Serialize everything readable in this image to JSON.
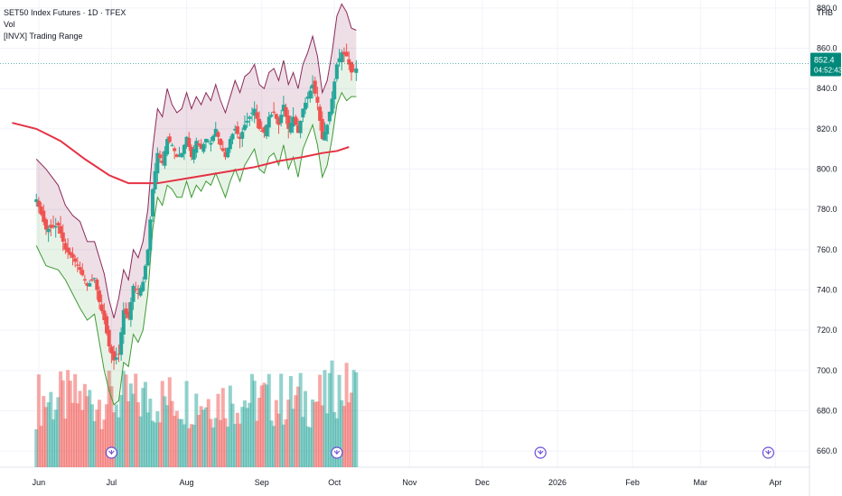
{
  "legend": {
    "symbol": "SET50 Index Futures · 1D · TFEX",
    "vol": "Vol",
    "indicator": "[INVX] Trading Range"
  },
  "currency": "THB",
  "colors": {
    "up": "#26a69a",
    "down": "#ef5350",
    "ma": "#e53244",
    "upper_band": "#8b2a5a",
    "lower_band": "#3f9a36",
    "price_line": "#00897b",
    "event_icon": "#6d4cd8"
  },
  "price_label": {
    "value": "852.4",
    "countdown": "04:52:43"
  },
  "event_icon": "event-arrow-icon",
  "chart_data": {
    "type": "candlestick",
    "ylim": [
      652,
      884
    ],
    "y_ticks": [
      880,
      860,
      840,
      820,
      800,
      780,
      760,
      740,
      720,
      700,
      680,
      660
    ],
    "y_tick_labels": [
      "880.0",
      "860.0",
      "840.0",
      "820.0",
      "800.0",
      "780.0",
      "760.0",
      "740.0",
      "720.0",
      "700.0",
      "680.0",
      "660.0"
    ],
    "x_tick_labels": [
      "Jun",
      "Jul",
      "Aug",
      "Sep",
      "Oct",
      "Nov",
      "Dec",
      "2026",
      "Feb",
      "Mar",
      "Apr"
    ],
    "x_tick_dates": [
      "2025-06-01",
      "2025-07-01",
      "2025-08-01",
      "2025-09-01",
      "2025-10-01",
      "2025-11-01",
      "2025-12-01",
      "2026-01-01",
      "2026-02-01",
      "2026-03-01",
      "2026-04-01"
    ],
    "x_start": "2025-05-16",
    "x_end": "2026-04-15",
    "last_price": 852.4,
    "close_path": [
      [
        0,
        785
      ],
      [
        4,
        770
      ],
      [
        9,
        772
      ],
      [
        12,
        760
      ],
      [
        15,
        756
      ],
      [
        18,
        750
      ],
      [
        21,
        742
      ],
      [
        24,
        746
      ],
      [
        26,
        734
      ],
      [
        28,
        725
      ],
      [
        30,
        712
      ],
      [
        32,
        705
      ],
      [
        34,
        708
      ],
      [
        36,
        730
      ],
      [
        38,
        726
      ],
      [
        40,
        742
      ],
      [
        42,
        738
      ],
      [
        44,
        744
      ],
      [
        46,
        760
      ],
      [
        48,
        790
      ],
      [
        50,
        808
      ],
      [
        52,
        803
      ],
      [
        54,
        815
      ],
      [
        56,
        812
      ],
      [
        58,
        806
      ],
      [
        60,
        808
      ],
      [
        62,
        816
      ],
      [
        64,
        806
      ],
      [
        66,
        814
      ],
      [
        68,
        810
      ],
      [
        70,
        815
      ],
      [
        72,
        813
      ],
      [
        74,
        820
      ],
      [
        76,
        812
      ],
      [
        78,
        806
      ],
      [
        80,
        815
      ],
      [
        82,
        820
      ],
      [
        84,
        815
      ],
      [
        86,
        822
      ],
      [
        88,
        826
      ],
      [
        90,
        830
      ],
      [
        92,
        820
      ],
      [
        94,
        818
      ],
      [
        96,
        826
      ],
      [
        98,
        828
      ],
      [
        100,
        822
      ],
      [
        102,
        832
      ],
      [
        104,
        820
      ],
      [
        106,
        826
      ],
      [
        108,
        818
      ],
      [
        110,
        830
      ],
      [
        112,
        836
      ],
      [
        114,
        842
      ],
      [
        116,
        833
      ],
      [
        118,
        815
      ],
      [
        120,
        822
      ],
      [
        122,
        835
      ],
      [
        124,
        852
      ],
      [
        126,
        858
      ],
      [
        128,
        856
      ],
      [
        130,
        848
      ],
      [
        132,
        850
      ]
    ],
    "ma_path": [
      [
        -10,
        823
      ],
      [
        0,
        820
      ],
      [
        10,
        814
      ],
      [
        20,
        805
      ],
      [
        30,
        797
      ],
      [
        38,
        793
      ],
      [
        50,
        793
      ],
      [
        60,
        795
      ],
      [
        70,
        797
      ],
      [
        80,
        799
      ],
      [
        90,
        801
      ],
      [
        100,
        804
      ],
      [
        110,
        806
      ],
      [
        118,
        808
      ],
      [
        124,
        809
      ],
      [
        129,
        811
      ]
    ],
    "upper_band_path": [
      [
        0,
        805
      ],
      [
        4,
        800
      ],
      [
        9,
        792
      ],
      [
        12,
        782
      ],
      [
        15,
        777
      ],
      [
        18,
        774
      ],
      [
        21,
        764
      ],
      [
        24,
        764
      ],
      [
        26,
        756
      ],
      [
        28,
        748
      ],
      [
        30,
        735
      ],
      [
        32,
        726
      ],
      [
        34,
        736
      ],
      [
        36,
        750
      ],
      [
        38,
        745
      ],
      [
        40,
        760
      ],
      [
        42,
        756
      ],
      [
        44,
        764
      ],
      [
        46,
        780
      ],
      [
        48,
        810
      ],
      [
        50,
        830
      ],
      [
        52,
        826
      ],
      [
        54,
        840
      ],
      [
        56,
        832
      ],
      [
        58,
        828
      ],
      [
        60,
        830
      ],
      [
        62,
        838
      ],
      [
        64,
        830
      ],
      [
        66,
        836
      ],
      [
        68,
        832
      ],
      [
        70,
        838
      ],
      [
        72,
        834
      ],
      [
        74,
        842
      ],
      [
        76,
        834
      ],
      [
        78,
        828
      ],
      [
        80,
        836
      ],
      [
        82,
        844
      ],
      [
        84,
        838
      ],
      [
        86,
        846
      ],
      [
        88,
        848
      ],
      [
        90,
        852
      ],
      [
        92,
        842
      ],
      [
        94,
        840
      ],
      [
        96,
        848
      ],
      [
        98,
        850
      ],
      [
        100,
        844
      ],
      [
        102,
        854
      ],
      [
        104,
        842
      ],
      [
        106,
        848
      ],
      [
        108,
        840
      ],
      [
        110,
        852
      ],
      [
        112,
        858
      ],
      [
        114,
        866
      ],
      [
        116,
        856
      ],
      [
        118,
        838
      ],
      [
        120,
        844
      ],
      [
        122,
        858
      ],
      [
        124,
        876
      ],
      [
        126,
        882
      ],
      [
        128,
        878
      ],
      [
        130,
        870
      ],
      [
        132,
        869
      ]
    ],
    "lower_band_path": [
      [
        0,
        762
      ],
      [
        4,
        752
      ],
      [
        9,
        750
      ],
      [
        12,
        745
      ],
      [
        15,
        738
      ],
      [
        18,
        731
      ],
      [
        21,
        725
      ],
      [
        24,
        728
      ],
      [
        26,
        714
      ],
      [
        28,
        700
      ],
      [
        30,
        690
      ],
      [
        32,
        683
      ],
      [
        34,
        685
      ],
      [
        36,
        704
      ],
      [
        38,
        702
      ],
      [
        40,
        718
      ],
      [
        42,
        714
      ],
      [
        44,
        720
      ],
      [
        46,
        738
      ],
      [
        48,
        770
      ],
      [
        50,
        786
      ],
      [
        52,
        782
      ],
      [
        54,
        792
      ],
      [
        56,
        790
      ],
      [
        58,
        786
      ],
      [
        60,
        786
      ],
      [
        62,
        794
      ],
      [
        64,
        786
      ],
      [
        66,
        792
      ],
      [
        68,
        789
      ],
      [
        70,
        794
      ],
      [
        72,
        792
      ],
      [
        74,
        798
      ],
      [
        76,
        792
      ],
      [
        78,
        786
      ],
      [
        80,
        794
      ],
      [
        82,
        800
      ],
      [
        84,
        794
      ],
      [
        86,
        802
      ],
      [
        88,
        806
      ],
      [
        90,
        810
      ],
      [
        92,
        800
      ],
      [
        94,
        798
      ],
      [
        96,
        806
      ],
      [
        98,
        808
      ],
      [
        100,
        802
      ],
      [
        102,
        812
      ],
      [
        104,
        800
      ],
      [
        106,
        806
      ],
      [
        108,
        796
      ],
      [
        110,
        810
      ],
      [
        112,
        816
      ],
      [
        114,
        822
      ],
      [
        116,
        812
      ],
      [
        118,
        796
      ],
      [
        120,
        802
      ],
      [
        122,
        815
      ],
      [
        124,
        832
      ],
      [
        126,
        838
      ],
      [
        128,
        834
      ],
      [
        130,
        836
      ],
      [
        132,
        836
      ]
    ],
    "volume_bands": {
      "ylim": [
        0,
        100
      ]
    }
  },
  "events": [
    {
      "date": "2025-07-01"
    },
    {
      "date": "2025-10-02"
    },
    {
      "date": "2025-12-25"
    },
    {
      "date": "2026-03-29"
    }
  ]
}
